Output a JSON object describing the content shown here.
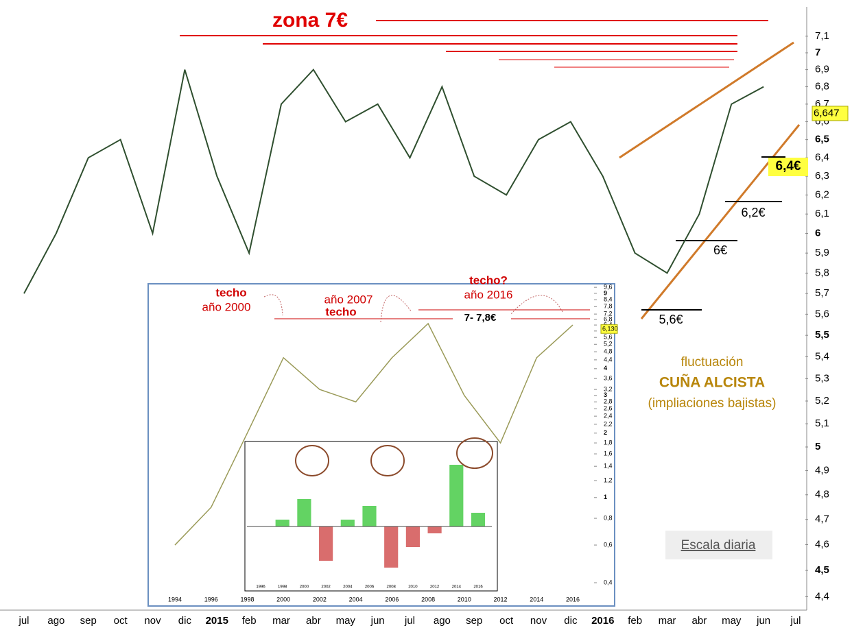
{
  "chart_data": [
    {
      "type": "line",
      "log_scale": true,
      "color": "#2f4f2f",
      "categories": [
        "jul",
        "ago",
        "sep",
        "oct",
        "nov",
        "dic",
        "2015",
        "feb",
        "mar",
        "abr",
        "may",
        "jun",
        "jul",
        "ago",
        "sep",
        "oct",
        "nov",
        "dic",
        "2016",
        "feb",
        "mar",
        "abr",
        "may",
        "jun",
        "jul"
      ],
      "values": [
        5.7,
        6.0,
        6.4,
        6.5,
        6.0,
        6.9,
        6.3,
        5.9,
        6.7,
        6.9,
        6.6,
        6.7,
        6.4,
        6.8,
        6.3,
        6.2,
        6.5,
        6.6,
        6.3,
        5.9,
        5.8,
        6.1,
        6.7,
        6.8,
        null
      ],
      "ylim": [
        4.35,
        7.28
      ],
      "yticks": [
        {
          "value": 4.4,
          "label": "4,4"
        },
        {
          "value": 4.5,
          "label": "4,5"
        },
        {
          "value": 4.6,
          "label": "4,6"
        },
        {
          "value": 4.7,
          "label": "4,7"
        },
        {
          "value": 4.8,
          "label": "4,8"
        },
        {
          "value": 4.9,
          "label": "4,9"
        },
        5,
        {
          "value": 5.1,
          "label": "5,1"
        },
        {
          "value": 5.2,
          "label": "5,2"
        },
        {
          "value": 5.3,
          "label": "5,3"
        },
        {
          "value": 5.4,
          "label": "5,4"
        },
        {
          "value": 5.5,
          "label": "5,5"
        },
        {
          "value": 5.6,
          "label": "5,6"
        },
        {
          "value": 5.7,
          "label": "5,7"
        },
        {
          "value": 5.8,
          "label": "5,8"
        },
        {
          "value": 5.9,
          "label": "5,9"
        },
        6,
        {
          "value": 6.1,
          "label": "6,1"
        },
        {
          "value": 6.2,
          "label": "6,2"
        },
        {
          "value": 6.3,
          "label": "6,3"
        },
        {
          "value": 6.4,
          "label": "6,4"
        },
        {
          "value": 6.5,
          "label": "6,5"
        },
        {
          "value": 6.6,
          "label": "6,6"
        },
        {
          "value": 6.7,
          "label": "6,7"
        },
        {
          "value": 6.8,
          "label": "6,8"
        },
        {
          "value": 6.9,
          "label": "6,9"
        },
        7,
        {
          "value": 7.1,
          "label": "7,1"
        }
      ],
      "last_price": {
        "value": 6.647,
        "label": "6,647"
      },
      "annotations": [
        "zona 7€",
        "6,4€",
        "6,2€",
        "6€",
        "5,6€",
        "fluctuación",
        "CUÑA ALCISTA",
        "(impliaciones bajistas)",
        "Escala diaria"
      ]
    },
    {
      "type": "line",
      "log_scale": true,
      "color": "#9a9a58",
      "categories": [
        "1994",
        "1996",
        "1998",
        "2000",
        "2002",
        "2004",
        "2006",
        "2008",
        "2010",
        "2012",
        "2014",
        "2016"
      ],
      "values": [
        0.6,
        0.9,
        2.0,
        4.5,
        3.2,
        2.8,
        4.5,
        6.5,
        3.0,
        1.8,
        4.5,
        6.4
      ],
      "ylim": [
        0.316,
        9.68
      ],
      "yticks": [
        {
          "value": 0.4,
          "label": "0,4"
        },
        {
          "value": 0.6,
          "label": "0,6"
        },
        {
          "value": 0.8,
          "label": "0,8"
        },
        1,
        {
          "value": 1.2,
          "label": "1,2"
        },
        {
          "value": 1.4,
          "label": "1,4"
        },
        {
          "value": 1.6,
          "label": "1,6"
        },
        {
          "value": 1.8,
          "label": "1,8"
        },
        2,
        {
          "value": 2.2,
          "label": "2,2"
        },
        {
          "value": 2.4,
          "label": "2,4"
        },
        {
          "value": 2.6,
          "label": "2,6"
        },
        {
          "value": 2.8,
          "label": "2,8"
        },
        3,
        {
          "value": 3.2,
          "label": "3,2"
        },
        {
          "value": 3.6,
          "label": "3,6"
        },
        4,
        {
          "value": 4.4,
          "label": "4,4"
        },
        {
          "value": 4.8,
          "label": "4,8"
        },
        {
          "value": 5.2,
          "label": "5,2"
        },
        {
          "value": 5.6,
          "label": "5,6"
        },
        6,
        {
          "value": 6.4,
          "label": "6,4"
        },
        {
          "value": 6.8,
          "label": "6,8"
        },
        {
          "value": 7.2,
          "label": "7,2"
        },
        {
          "value": 7.8,
          "label": "7,8"
        },
        {
          "value": 8.4,
          "label": "8,4"
        },
        9,
        {
          "value": 9.6,
          "label": "9,6"
        }
      ],
      "last_price": {
        "value": 6.13,
        "label": "6,130"
      },
      "annotations": [
        "techo",
        "año 2000",
        "año 2007",
        "techo",
        "techo?",
        "año 2016",
        "7- 7,8€"
      ]
    },
    {
      "type": "bar",
      "up_color": "#3cc83c",
      "down_color": "#d04848",
      "categories": [
        "1996",
        "1998",
        "2000",
        "2002",
        "2004",
        "2006",
        "2008",
        "2010",
        "2012",
        "2014",
        "2016"
      ],
      "values": [
        0.0,
        0.1,
        0.4,
        -0.5,
        0.1,
        0.3,
        -0.6,
        -0.3,
        -0.1,
        0.9,
        0.2
      ],
      "ylim": [
        -1,
        1
      ]
    }
  ]
}
